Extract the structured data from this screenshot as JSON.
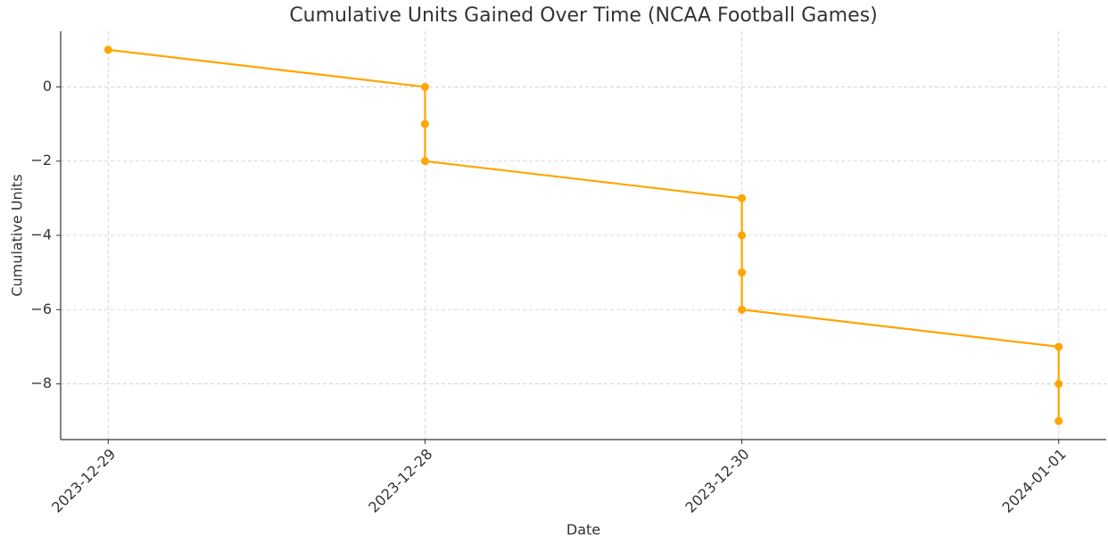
{
  "chart_data": {
    "type": "line",
    "title": "Cumulative Units Gained Over Time (NCAA Football Games)",
    "x_label": "Date",
    "y_label": "Cumulative Units",
    "categories": [
      "2023-12-29",
      "2023-12-28",
      "2023-12-30",
      "2024-01-01"
    ],
    "x": [
      "2023-12-29",
      "2023-12-28",
      "2023-12-28",
      "2023-12-28",
      "2023-12-30",
      "2023-12-30",
      "2023-12-30",
      "2023-12-30",
      "2024-01-01",
      "2024-01-01",
      "2024-01-01"
    ],
    "values": [
      1,
      0,
      -1,
      -2,
      -3,
      -4,
      -5,
      -6,
      -7,
      -8,
      -9
    ],
    "color": "#ffa500",
    "ylim": [
      -9.5,
      1.5
    ],
    "yticks": [
      {
        "value": -8,
        "label": "−8"
      },
      {
        "value": -6,
        "label": "−6"
      },
      {
        "value": -4,
        "label": "−4"
      },
      {
        "value": -2,
        "label": "−2"
      },
      0
    ],
    "grid": true
  }
}
